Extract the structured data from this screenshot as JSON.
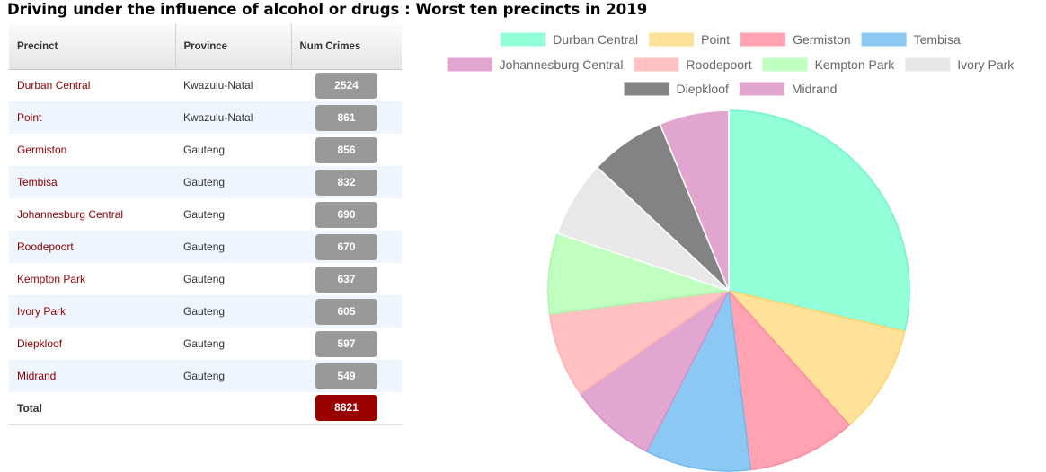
{
  "title": "Driving under the influence of alcohol or drugs : Worst ten precincts in 2019",
  "table": {
    "headers": [
      "Precinct",
      "Province",
      "Num Crimes"
    ],
    "rows": [
      {
        "precinct": "Durban Central",
        "province": "Kwazulu-Natal",
        "num": "2524"
      },
      {
        "precinct": "Point",
        "province": "Kwazulu-Natal",
        "num": "861"
      },
      {
        "precinct": "Germiston",
        "province": "Gauteng",
        "num": "856"
      },
      {
        "precinct": "Tembisa",
        "province": "Gauteng",
        "num": "832"
      },
      {
        "precinct": "Johannesburg Central",
        "province": "Gauteng",
        "num": "690"
      },
      {
        "precinct": "Roodepoort",
        "province": "Gauteng",
        "num": "670"
      },
      {
        "precinct": "Kempton Park",
        "province": "Gauteng",
        "num": "637"
      },
      {
        "precinct": "Ivory Park",
        "province": "Gauteng",
        "num": "605"
      },
      {
        "precinct": "Diepkloof",
        "province": "Gauteng",
        "num": "597"
      },
      {
        "precinct": "Midrand",
        "province": "Gauteng",
        "num": "549"
      }
    ],
    "total_label": "Total",
    "total_value": "8821"
  },
  "chart_data": {
    "type": "pie",
    "title": "",
    "legend_position": "top",
    "categories": [
      "Durban Central",
      "Point",
      "Germiston",
      "Tembisa",
      "Johannesburg Central",
      "Roodepoort",
      "Kempton Park",
      "Ivory Park",
      "Diepkloof",
      "Midrand"
    ],
    "values": [
      2524,
      861,
      856,
      832,
      690,
      670,
      637,
      605,
      597,
      549
    ],
    "colors": [
      "#93ffd8",
      "#ffe299",
      "#ffa2b2",
      "#8cc8f4",
      "#e2a7d0",
      "#ffc1c2",
      "#c1ffc1",
      "#e8e8e8",
      "#838383",
      "#e0a6cf"
    ],
    "stroke_colors": [
      "#6ff5c8",
      "#ffd36a",
      "#ff8aa0",
      "#71b8ee",
      "#d790c4",
      "#ffb0b2",
      "#a9f7a9",
      "#ffffff",
      "#ffffff",
      "#ffffff"
    ]
  }
}
